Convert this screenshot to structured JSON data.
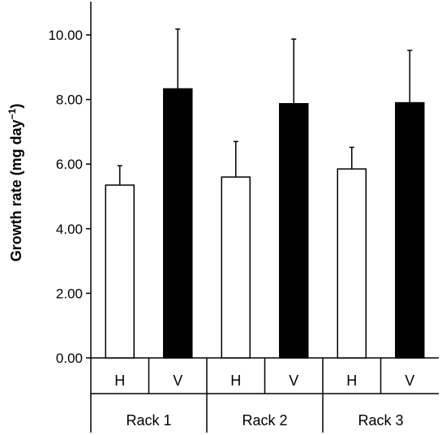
{
  "chart_data": {
    "type": "bar",
    "ylabel_main": "Growth rate (mg day",
    "ylabel_sup": "−1",
    "ylabel_close": ")",
    "ylim": [
      0,
      10
    ],
    "yticks": [
      0,
      2,
      4,
      6,
      8,
      10
    ],
    "ytick_labels": [
      "0.00",
      "2.00",
      "4.00",
      "6.00",
      "8.00",
      "10.00"
    ],
    "grid": false,
    "groups": [
      {
        "label": "Rack 1",
        "bars": [
          {
            "category": "H",
            "value": 5.35,
            "error": 0.6,
            "fill": "#ffffff"
          },
          {
            "category": "V",
            "value": 8.33,
            "error": 1.85,
            "fill": "#000000"
          }
        ]
      },
      {
        "label": "Rack 2",
        "bars": [
          {
            "category": "H",
            "value": 5.6,
            "error": 1.1,
            "fill": "#ffffff"
          },
          {
            "category": "V",
            "value": 7.87,
            "error": 2.0,
            "fill": "#000000"
          }
        ]
      },
      {
        "label": "Rack 3",
        "bars": [
          {
            "category": "H",
            "value": 5.85,
            "error": 0.67,
            "fill": "#ffffff"
          },
          {
            "category": "V",
            "value": 7.9,
            "error": 1.62,
            "fill": "#000000"
          }
        ]
      }
    ]
  }
}
